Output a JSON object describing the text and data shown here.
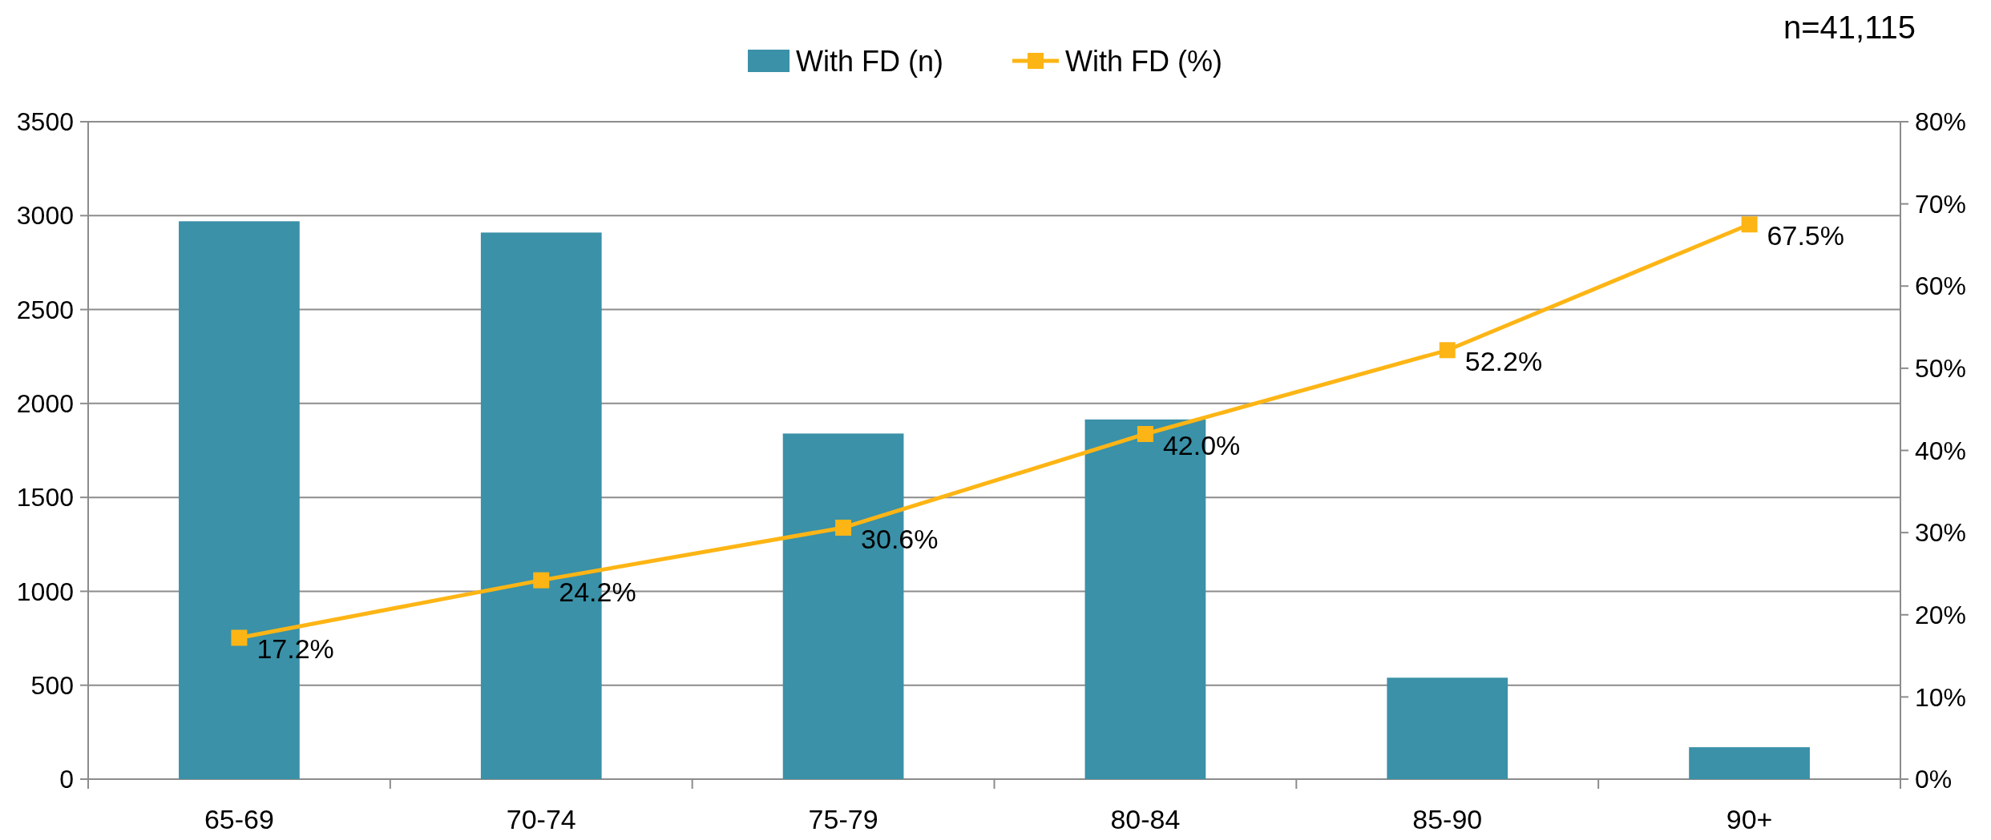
{
  "chart_data": {
    "type": "bar",
    "categories": [
      "65-69",
      "70-74",
      "75-79",
      "80-84",
      "85-90",
      "90+"
    ],
    "series": [
      {
        "name": "With FD (n)",
        "color": "#3a91a8",
        "values": [
          2970,
          2910,
          1840,
          1915,
          540,
          170
        ]
      },
      {
        "name": "With FD (%)",
        "type": "line",
        "axis": "y2",
        "color": "#fdb515",
        "marker": "square",
        "values": [
          17.2,
          24.2,
          30.6,
          42.0,
          52.2,
          67.5
        ],
        "value_labels": [
          "17.2%",
          "24.2%",
          "30.6%",
          "42.0%",
          "52.2%",
          "67.5%"
        ]
      }
    ],
    "ylim": [
      0,
      3500
    ],
    "yticks": [
      0,
      500,
      1000,
      1500,
      2000,
      2500,
      3000,
      3500
    ],
    "y2lim": [
      0,
      80
    ],
    "y2ticks": [
      {
        "value": 0,
        "label": "0%"
      },
      {
        "value": 10,
        "label": "10%"
      },
      {
        "value": 20,
        "label": "20%"
      },
      {
        "value": 30,
        "label": "30%"
      },
      {
        "value": 40,
        "label": "40%"
      },
      {
        "value": 50,
        "label": "50%"
      },
      {
        "value": 60,
        "label": "60%"
      },
      {
        "value": 70,
        "label": "70%"
      },
      {
        "value": 80,
        "label": "80%"
      }
    ],
    "grid": "y",
    "legend": "top",
    "annotations": [
      "n=41,115"
    ]
  }
}
